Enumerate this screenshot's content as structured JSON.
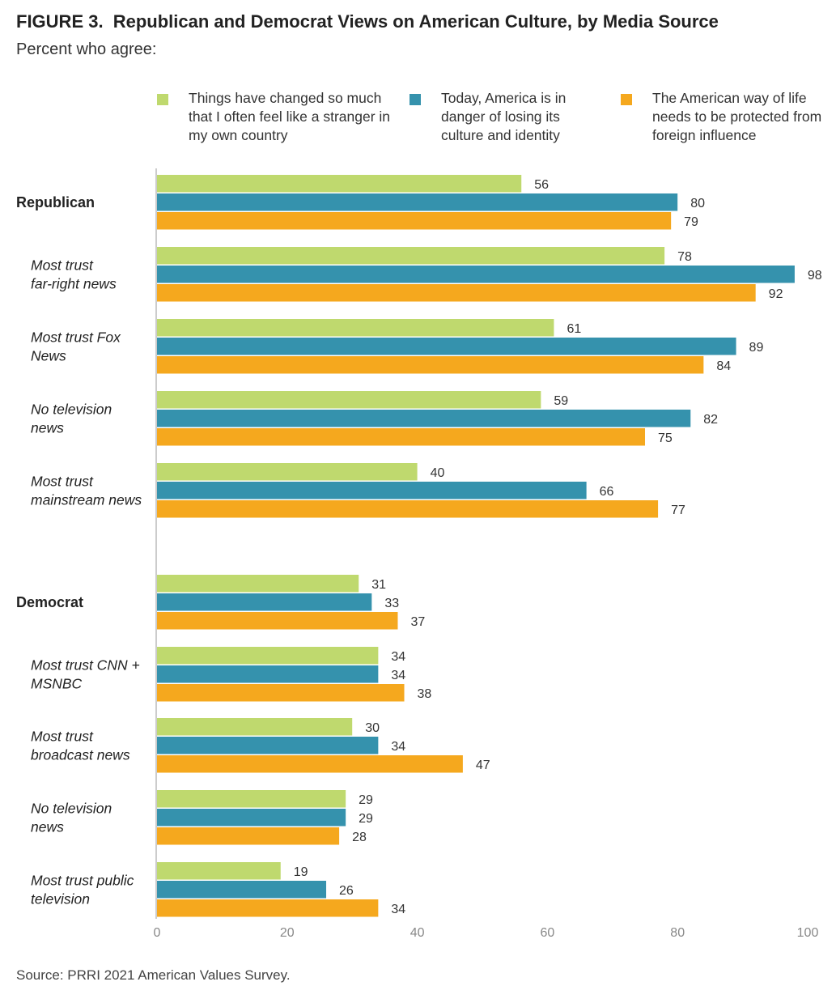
{
  "figure": {
    "label": "FIGURE 3.",
    "title": "Republican and Democrat Views on American Culture, by Media Source",
    "subtitle": "Percent who agree:",
    "source": "Source: PRRI 2021 American Values Survey."
  },
  "colors": {
    "series1": "#bfd96e",
    "series2": "#3592ad",
    "series3": "#f5a81e",
    "axis": "#cccccc"
  },
  "legend": [
    {
      "label": "Things have changed so much that I often feel like a stranger in my own country"
    },
    {
      "label": "Today, America is in danger of losing its culture and identity"
    },
    {
      "label": "The American way of life needs to be protected from foreign influence"
    }
  ],
  "chart_data": {
    "type": "bar",
    "orientation": "horizontal",
    "xlim": [
      0,
      100
    ],
    "x_ticks": [
      0,
      20,
      40,
      60,
      80,
      100
    ],
    "categories": [
      {
        "label": "Republican",
        "style": "bold"
      },
      {
        "label": "Most trust far-right news",
        "style": "italic"
      },
      {
        "label": "Most trust Fox News",
        "style": "italic"
      },
      {
        "label": "No television news",
        "style": "italic"
      },
      {
        "label": "Most trust mainstream news",
        "style": "italic"
      },
      {
        "label": "Democrat",
        "style": "bold"
      },
      {
        "label": "Most trust CNN + MSNBC",
        "style": "italic"
      },
      {
        "label": "Most trust broadcast news",
        "style": "italic"
      },
      {
        "label": "No television news",
        "style": "italic"
      },
      {
        "label": "Most trust public television",
        "style": "italic"
      }
    ],
    "series": [
      {
        "name": "Things have changed so much that I often feel like a stranger in my own country",
        "values": [
          56,
          78,
          61,
          59,
          40,
          31,
          34,
          30,
          29,
          19
        ]
      },
      {
        "name": "Today, America is in danger of losing its culture and identity",
        "values": [
          80,
          98,
          89,
          82,
          66,
          33,
          34,
          34,
          29,
          26
        ]
      },
      {
        "name": "The American way of life needs to be protected from foreign influence",
        "values": [
          79,
          92,
          84,
          75,
          77,
          37,
          38,
          47,
          28,
          34
        ]
      }
    ],
    "data_labels": true,
    "grid": false,
    "legend_position": "top"
  }
}
